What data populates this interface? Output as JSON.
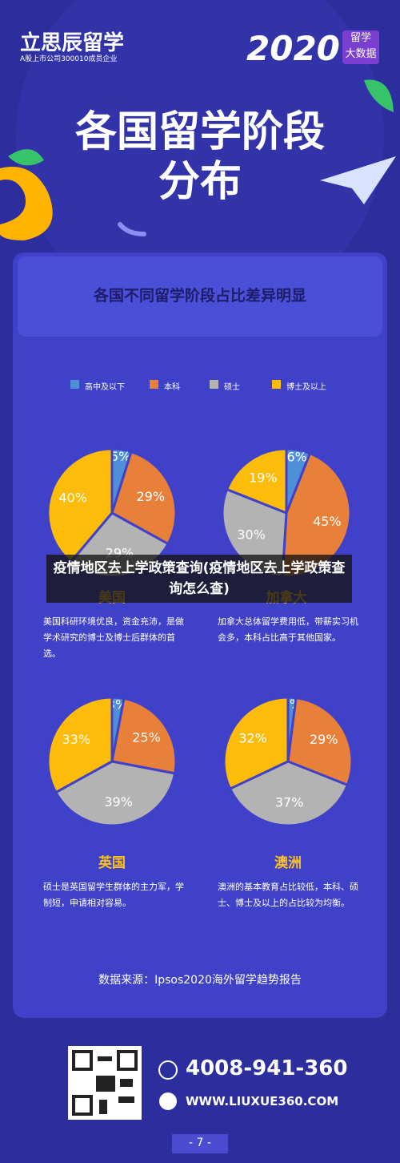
{
  "logo": "立思辰留学",
  "tagline": "A股上市公司300010成员企业",
  "year": "2020",
  "badge": [
    "留学",
    "大数据"
  ],
  "title": [
    "各国留学阶段",
    "分布"
  ],
  "subtitle": "各国不同留学阶段占比差异明显",
  "legend": {
    "names": [
      "高中及以下",
      "本科",
      "硕士",
      "博士及以上"
    ],
    "colors": [
      "#4f8fd8",
      "#e8803a",
      "#b3b3b3",
      "#fdbb0a"
    ]
  },
  "chart_data": [
    {
      "type": "pie",
      "title": "美国",
      "values": [
        5,
        29,
        29,
        40
      ],
      "value_labels": [
        "5%",
        "29%",
        "29%",
        "40%"
      ],
      "description": "美国科研环境优良，资金充沛，是做学术研究的博士及博士后群体的首选。"
    },
    {
      "type": "pie",
      "title": "加拿大",
      "values": [
        6,
        45,
        30,
        19
      ],
      "value_labels": [
        "6%",
        "45%",
        "30%",
        "19%"
      ],
      "description": "加拿大总体留学费用低，带薪实习机会多，本科占比高于其他国家。"
    },
    {
      "type": "pie",
      "title": "英国",
      "values": [
        3,
        25,
        39,
        33
      ],
      "value_labels": [
        "3%",
        "25%",
        "39%",
        "33%"
      ],
      "description": "硕士是英国留学生群体的主力军，学制短，申请相对容易。"
    },
    {
      "type": "pie",
      "title": "澳洲",
      "values": [
        2,
        29,
        37,
        32
      ],
      "value_labels": [
        "2%",
        "29%",
        "37%",
        "32%"
      ],
      "description": "澳洲的基本教育占比较低，本科、硕士、博士及以上的占比较为均衡。"
    }
  ],
  "source": "数据来源：Ipsos2020海外留学趋势报告",
  "phone": "4008-941-360",
  "website": "WWW.LIUXUE360.COM",
  "page_number": "- 7 -",
  "overlay": "疫情地区去上学政策查询(疫情地区去上学政策查询怎么查)"
}
